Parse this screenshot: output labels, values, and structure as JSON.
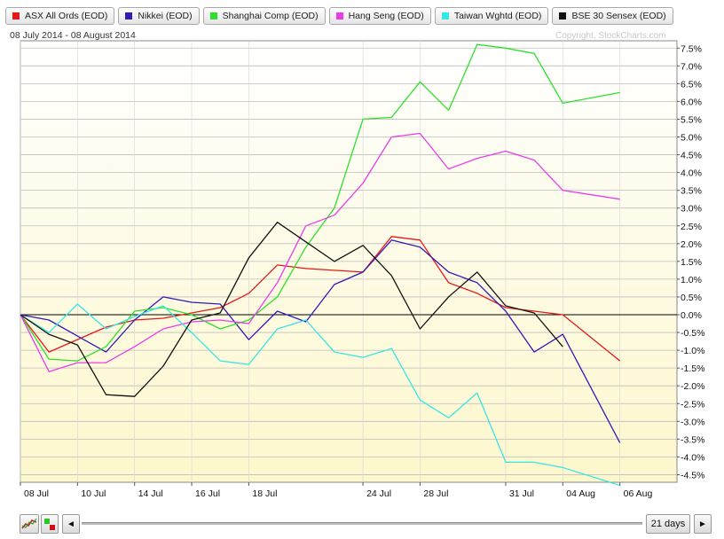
{
  "legend": [
    {
      "label": "ASX All Ords (EOD)",
      "color": "#e41a1a"
    },
    {
      "label": "Nikkei (EOD)",
      "color": "#3319b5"
    },
    {
      "label": "Shanghai Comp (EOD)",
      "color": "#2de02d"
    },
    {
      "label": "Hang Seng (EOD)",
      "color": "#e83ee8"
    },
    {
      "label": "Taiwan Wghtd (EOD)",
      "color": "#37e6e6"
    },
    {
      "label": "BSE 30 Sensex (EOD)",
      "color": "#111111"
    }
  ],
  "header": {
    "date_range": "08 July 2014 - 08 August 2014",
    "copyright": "Copyright, StockCharts.com"
  },
  "controls": {
    "period_label": "21 days",
    "prev_arrow": "◄",
    "next_arrow": "►",
    "chart_type_icon": "line-chart-icon",
    "color_icon": "color-swatch-icon"
  },
  "chart_data": {
    "type": "line",
    "x": [
      "08 Jul",
      "09 Jul",
      "10 Jul",
      "11 Jul",
      "14 Jul",
      "15 Jul",
      "16 Jul",
      "17 Jul",
      "18 Jul",
      "21 Jul",
      "22 Jul",
      "23 Jul",
      "24 Jul",
      "25 Jul",
      "28 Jul",
      "29 Jul",
      "30 Jul",
      "31 Jul",
      "01 Aug",
      "04 Aug",
      "05 Aug",
      "06 Aug",
      "07 Aug",
      "08 Aug"
    ],
    "x_ticks": [
      "08 Jul",
      "10 Jul",
      "14 Jul",
      "16 Jul",
      "18 Jul",
      "24 Jul",
      "28 Jul",
      "31 Jul",
      "04 Aug",
      "06 Aug"
    ],
    "y_ticks": [
      "7.5%",
      "7.0%",
      "6.5%",
      "6.0%",
      "5.5%",
      "5.0%",
      "4.5%",
      "4.0%",
      "3.5%",
      "3.0%",
      "2.5%",
      "2.0%",
      "1.5%",
      "1.0%",
      "0.5%",
      "0.0%",
      "-0.5%",
      "-1.0%",
      "-1.5%",
      "-2.0%",
      "-2.5%",
      "-3.0%",
      "-3.5%",
      "-4.0%",
      "-4.5%"
    ],
    "ylim": [
      -4.8,
      7.7
    ],
    "ylabel": "",
    "xlabel": "",
    "title": "",
    "grid": true,
    "series": [
      {
        "name": "ASX All Ords (EOD)",
        "color": "#e41a1a",
        "points": [
          [
            "08 Jul",
            0.0
          ],
          [
            "09 Jul",
            -1.05
          ],
          [
            "11 Jul",
            -0.35
          ],
          [
            "14 Jul",
            -0.15
          ],
          [
            "15 Jul",
            -0.1
          ],
          [
            "17 Jul",
            0.2
          ],
          [
            "18 Jul",
            0.6
          ],
          [
            "21 Jul",
            1.4
          ],
          [
            "22 Jul",
            1.3
          ],
          [
            "24 Jul",
            1.2
          ],
          [
            "25 Jul",
            2.2
          ],
          [
            "28 Jul",
            2.1
          ],
          [
            "29 Jul",
            0.9
          ],
          [
            "30 Jul",
            0.6
          ],
          [
            "31 Jul",
            0.2
          ],
          [
            "01 Aug",
            0.1
          ],
          [
            "04 Aug",
            0.0
          ],
          [
            "06 Aug",
            -1.3
          ]
        ]
      },
      {
        "name": "Nikkei (EOD)",
        "color": "#3319b5",
        "points": [
          [
            "08 Jul",
            0.0
          ],
          [
            "09 Jul",
            -0.15
          ],
          [
            "10 Jul",
            -0.6
          ],
          [
            "11 Jul",
            -1.05
          ],
          [
            "14 Jul",
            -0.15
          ],
          [
            "15 Jul",
            0.5
          ],
          [
            "16 Jul",
            0.35
          ],
          [
            "17 Jul",
            0.3
          ],
          [
            "18 Jul",
            -0.7
          ],
          [
            "21 Jul",
            0.1
          ],
          [
            "22 Jul",
            -0.2
          ],
          [
            "23 Jul",
            0.85
          ],
          [
            "24 Jul",
            1.2
          ],
          [
            "25 Jul",
            2.1
          ],
          [
            "28 Jul",
            1.9
          ],
          [
            "29 Jul",
            1.2
          ],
          [
            "30 Jul",
            0.9
          ],
          [
            "31 Jul",
            0.1
          ],
          [
            "01 Aug",
            -1.05
          ],
          [
            "04 Aug",
            -0.55
          ],
          [
            "06 Aug",
            -3.6
          ]
        ]
      },
      {
        "name": "Shanghai Comp (EOD)",
        "color": "#2de02d",
        "points": [
          [
            "08 Jul",
            0.0
          ],
          [
            "09 Jul",
            -1.25
          ],
          [
            "10 Jul",
            -1.3
          ],
          [
            "11 Jul",
            -0.9
          ],
          [
            "14 Jul",
            0.1
          ],
          [
            "15 Jul",
            0.2
          ],
          [
            "16 Jul",
            0.0
          ],
          [
            "17 Jul",
            -0.4
          ],
          [
            "18 Jul",
            -0.15
          ],
          [
            "21 Jul",
            0.5
          ],
          [
            "22 Jul",
            1.9
          ],
          [
            "23 Jul",
            3.0
          ],
          [
            "24 Jul",
            5.5
          ],
          [
            "25 Jul",
            5.55
          ],
          [
            "28 Jul",
            6.55
          ],
          [
            "29 Jul",
            5.75
          ],
          [
            "30 Jul",
            7.6
          ],
          [
            "31 Jul",
            7.5
          ],
          [
            "01 Aug",
            7.35
          ],
          [
            "04 Aug",
            5.95
          ],
          [
            "06 Aug",
            6.25
          ]
        ]
      },
      {
        "name": "Hang Seng (EOD)",
        "color": "#e83ee8",
        "points": [
          [
            "08 Jul",
            0.0
          ],
          [
            "09 Jul",
            -1.6
          ],
          [
            "10 Jul",
            -1.35
          ],
          [
            "11 Jul",
            -1.35
          ],
          [
            "14 Jul",
            -0.9
          ],
          [
            "15 Jul",
            -0.4
          ],
          [
            "16 Jul",
            -0.2
          ],
          [
            "17 Jul",
            -0.15
          ],
          [
            "18 Jul",
            -0.25
          ],
          [
            "21 Jul",
            0.9
          ],
          [
            "22 Jul",
            2.5
          ],
          [
            "23 Jul",
            2.8
          ],
          [
            "24 Jul",
            3.7
          ],
          [
            "25 Jul",
            5.0
          ],
          [
            "28 Jul",
            5.1
          ],
          [
            "29 Jul",
            4.1
          ],
          [
            "30 Jul",
            4.4
          ],
          [
            "31 Jul",
            4.6
          ],
          [
            "01 Aug",
            4.35
          ],
          [
            "04 Aug",
            3.5
          ],
          [
            "06 Aug",
            3.25
          ]
        ]
      },
      {
        "name": "Taiwan Wghtd (EOD)",
        "color": "#37e6e6",
        "points": [
          [
            "08 Jul",
            0.0
          ],
          [
            "09 Jul",
            -0.5
          ],
          [
            "10 Jul",
            0.3
          ],
          [
            "11 Jul",
            -0.4
          ],
          [
            "14 Jul",
            -0.05
          ],
          [
            "15 Jul",
            0.25
          ],
          [
            "16 Jul",
            -0.5
          ],
          [
            "17 Jul",
            -1.3
          ],
          [
            "18 Jul",
            -1.4
          ],
          [
            "21 Jul",
            -0.4
          ],
          [
            "22 Jul",
            -0.15
          ],
          [
            "23 Jul",
            -1.05
          ],
          [
            "24 Jul",
            -1.2
          ],
          [
            "25 Jul",
            -0.95
          ],
          [
            "28 Jul",
            -2.4
          ],
          [
            "29 Jul",
            -2.9
          ],
          [
            "30 Jul",
            -2.2
          ],
          [
            "31 Jul",
            -4.15
          ],
          [
            "01 Aug",
            -4.15
          ],
          [
            "04 Aug",
            -4.3
          ],
          [
            "06 Aug",
            -4.8
          ]
        ]
      },
      {
        "name": "BSE 30 Sensex (EOD)",
        "color": "#111111",
        "points": [
          [
            "08 Jul",
            0.0
          ],
          [
            "09 Jul",
            -0.55
          ],
          [
            "10 Jul",
            -0.85
          ],
          [
            "11 Jul",
            -2.25
          ],
          [
            "14 Jul",
            -2.3
          ],
          [
            "15 Jul",
            -1.45
          ],
          [
            "16 Jul",
            -0.15
          ],
          [
            "17 Jul",
            0.05
          ],
          [
            "18 Jul",
            1.6
          ],
          [
            "21 Jul",
            2.6
          ],
          [
            "22 Jul",
            2.05
          ],
          [
            "23 Jul",
            1.5
          ],
          [
            "24 Jul",
            1.95
          ],
          [
            "25 Jul",
            1.1
          ],
          [
            "28 Jul",
            -0.4
          ],
          [
            "29 Jul",
            0.5
          ],
          [
            "30 Jul",
            1.2
          ],
          [
            "31 Jul",
            0.25
          ],
          [
            "01 Aug",
            0.05
          ],
          [
            "04 Aug",
            -0.9
          ]
        ]
      }
    ]
  }
}
